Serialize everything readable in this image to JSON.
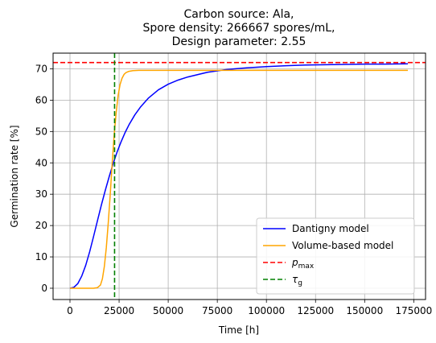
{
  "chart_data": {
    "type": "line",
    "title": [
      "Carbon source: Ala,",
      "Spore density: 266667 spores/mL,",
      "Design parameter: 2.55"
    ],
    "xlabel": "Time [h]",
    "ylabel": "Germination rate [%]",
    "xlim": [
      -8600,
      181000
    ],
    "ylim": [
      -3.6,
      75
    ],
    "xticks": [
      0,
      25000,
      50000,
      75000,
      100000,
      125000,
      150000,
      175000
    ],
    "xtick_labels": [
      "0",
      "25000",
      "50000",
      "75000",
      "100000",
      "125000",
      "150000",
      "175000"
    ],
    "yticks": [
      0,
      10,
      20,
      30,
      40,
      50,
      60,
      70
    ],
    "ytick_labels": [
      "0",
      "10",
      "20",
      "30",
      "40",
      "50",
      "60",
      "70"
    ],
    "grid": true,
    "legend_position": "lower-right",
    "series": [
      {
        "name": "Dantigny model",
        "color": "#0000ff",
        "style": "solid",
        "x": [
          0,
          2000,
          4000,
          6000,
          8000,
          10000,
          12000,
          14000,
          16000,
          18000,
          20000,
          22000,
          24000,
          26000,
          28000,
          30000,
          33000,
          36000,
          40000,
          45000,
          50000,
          55000,
          60000,
          70000,
          80000,
          90000,
          100000,
          110000,
          120000,
          130000,
          140000,
          150000,
          160000,
          172000
        ],
        "y": [
          0,
          0.3,
          1.5,
          3.9,
          7.3,
          11.6,
          16.5,
          21.6,
          26.6,
          31.3,
          35.7,
          39.8,
          43.5,
          46.7,
          49.6,
          52.1,
          55.3,
          57.9,
          60.7,
          63.3,
          65.1,
          66.4,
          67.4,
          68.9,
          69.8,
          70.3,
          70.7,
          71.0,
          71.2,
          71.3,
          71.4,
          71.5,
          71.5,
          71.6
        ]
      },
      {
        "name": "Volume-based model",
        "color": "#ffa500",
        "style": "solid",
        "x": [
          0,
          12000,
          14000,
          15500,
          16500,
          17500,
          18500,
          19500,
          20500,
          21500,
          22500,
          23500,
          24500,
          25500,
          26500,
          27500,
          28500,
          30000,
          32000,
          35000,
          40000,
          172000
        ],
        "y": [
          0,
          0,
          0.2,
          1,
          3,
          7,
          13,
          21,
          30,
          40,
          49,
          56,
          61.5,
          65,
          67,
          68.2,
          68.8,
          69.2,
          69.4,
          69.5,
          69.5,
          69.5
        ]
      },
      {
        "name": "p_max",
        "label_main": "p",
        "label_sub": "max",
        "color": "#ff0000",
        "style": "dashed",
        "orientation": "horizontal",
        "value": 72
      },
      {
        "name": "τ_g",
        "label_main": "τ",
        "label_sub": "g",
        "color": "#008000",
        "style": "dashed",
        "orientation": "vertical",
        "value": 22700
      }
    ]
  }
}
